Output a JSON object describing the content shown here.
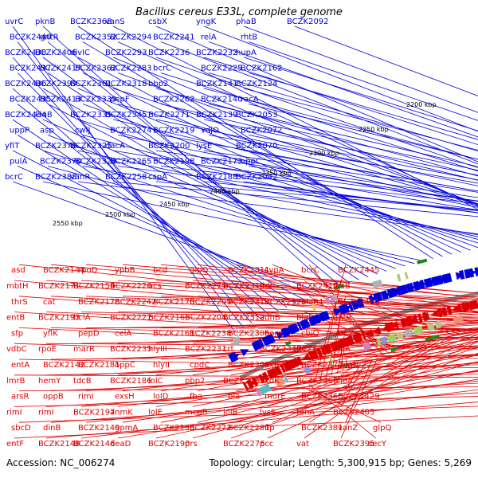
{
  "title": "Bacillus cereus E33L, complete genome",
  "footer": {
    "accession": "Accession: NC_006274",
    "summary": "Topology: circular; Length: 5,300,915 bp; Genes: 5,269"
  },
  "colors": {
    "forward": "#0000dd",
    "reverse": "#dd0000",
    "backbone": "#888888",
    "marker": "#1a8a1a",
    "text": "#000000"
  },
  "ticks": [
    "2200 kbp",
    "2250 kbp",
    "2300 kbp",
    "2350 kbp",
    "2400 kbp",
    "2450 kbp",
    "2500 kbp",
    "2550 kbp"
  ],
  "forward_genes": [
    "uvrC",
    "BCZK2440",
    "BCZK2438",
    "BCZK2437",
    "BCZK2436",
    "BCZK2435",
    "BCZK2434",
    "uppP",
    "yfiT",
    "pulA",
    "bcrC",
    "pknB",
    "gntR",
    "BCZK2406",
    "BCZK2417",
    "BCZK2399",
    "BCZK2413",
    "kinB",
    "asp",
    "BCZK2376",
    "BCZK2370",
    "BCZK2388",
    "BCZK2368",
    "BCZK2352",
    "divIC",
    "BCZK2362",
    "BCZK2361",
    "BCZK2339",
    "BCZK2335",
    "cwlJ",
    "BCZK2325",
    "BCZK2324",
    "vanR",
    "vanS",
    "BCZK2294",
    "BCZK2293",
    "BCZK2283",
    "BCZK2318",
    "pepF",
    "BCZK2345",
    "BCZK2274",
    "dacA",
    "BCZK2265",
    "BCZK2258",
    "csbX",
    "BCZK2241",
    "BCZK2236",
    "bcrC",
    "bbp2",
    "BCZK2262",
    "BCZK2271",
    "BCZK2219",
    "BCZK2200",
    "BCZK2198",
    "cspA",
    "yngK",
    "relA",
    "BCZK2232",
    "BCZK2225",
    "BCZK2141",
    "BCZK2140",
    "BCZK2139",
    "vdjO",
    "lysE",
    "BCZK2173",
    "BCZK2188",
    "phaB",
    "rhtB",
    "hupA",
    "BCZK2162",
    "BCZK2124",
    "racA",
    "BCZK2053",
    "BCZK2072",
    "BCZK2070",
    "oppC",
    "BCZK2042",
    "BCZK2092"
  ],
  "reverse_genes": [
    "entF",
    "sbcD",
    "rimI",
    "arsR",
    "lmrB",
    "entA",
    "vdbC",
    "sfp",
    "entB",
    "thrS",
    "mbtH",
    "asd",
    "BCZK2148",
    "dinB",
    "rimI",
    "oppB",
    "hemY",
    "BCZK2142",
    "rpoE",
    "yflK",
    "BCZK2193",
    "cat",
    "BCZK2171",
    "BCZK2144",
    "BCZK2146",
    "BCZK2149",
    "BCZK2197",
    "rimI",
    "tdcB",
    "BCZK2181",
    "marR",
    "pepD",
    "bclA",
    "BCZK2178",
    "BCZK2154",
    "rpoD",
    "deaD",
    "gpmA",
    "anmK",
    "exsH",
    "BCZK2186",
    "oppC",
    "BCZK2235",
    "celA",
    "BCZK2227",
    "BCZK2242",
    "BCZK2226",
    "ypbB",
    "BCZK2190",
    "BCZK2195",
    "lolE",
    "lolD",
    "lolC",
    "hlyII",
    "hlyIII",
    "BCZK2161",
    "BCZK2166",
    "BCZK2170",
    "acs",
    "bcd",
    "prs",
    "BCZK2272",
    "mcpB",
    "fba",
    "pbp2",
    "cpdC",
    "BCZK2231",
    "BCZK2238",
    "BCZK2204",
    "BCZK2205",
    "BCZK2275",
    "glpQ",
    "BCZK2276",
    "BCZK2281",
    "lolB",
    "bla",
    "BCZK2263",
    "BCZK2308",
    "crt",
    "BCZK2306",
    "BCZK2312",
    "BCZK2313",
    "BCZK2319",
    "BCZK2311",
    "pcc",
    "flp",
    "lysS",
    "murE",
    "vxdK",
    "expZ",
    "BCZK2347",
    "hom",
    "adhB",
    "BCZK2321",
    "ddl",
    "cypA",
    "vat",
    "BCZK2381",
    "tenA",
    "BCZK2366",
    "BCZK2369",
    "BCZK2377",
    "BCZK2379",
    "cbiO",
    "blaI",
    "blaR1",
    "BCZK2414",
    "bcrC",
    "BCZK2395",
    "vanZ",
    "BCZK2405",
    "BCZK2429",
    "choA",
    "dnaN",
    "yjqA",
    "BCZK2459",
    "gntR",
    "BCZK2460",
    "fosB",
    "BCZK2445",
    "secY",
    "glpQ"
  ]
}
